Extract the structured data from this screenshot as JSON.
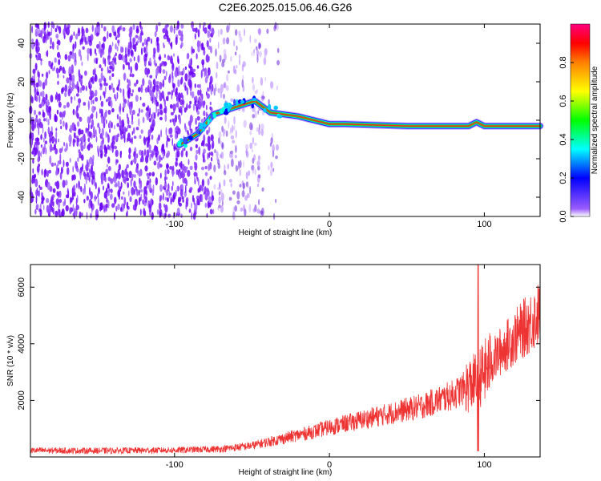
{
  "chart_data": [
    {
      "type": "heatmap",
      "title": "C2E6.2025.015.06.46.G26",
      "xlabel": "Height of straight line (km)",
      "ylabel": "Frequency (Hz)",
      "xlim": [
        -193,
        136
      ],
      "ylim": [
        -50,
        50
      ],
      "x_ticks": [
        -100,
        0,
        100
      ],
      "y_ticks": [
        -40,
        -20,
        0,
        20,
        40
      ],
      "colorbar": {
        "label": "Normalized spectral amplitude",
        "range": [
          0,
          1
        ],
        "ticks": [
          0.0,
          0.2,
          0.4,
          0.6,
          0.8
        ],
        "colormap": [
          "#ffffff",
          "#8000ff",
          "#0000ff",
          "#00ffff",
          "#00ff00",
          "#ffff00",
          "#ff8000",
          "#ff0000",
          "#ff00a0"
        ]
      },
      "signal_track": [
        {
          "x": -97,
          "y": -13
        },
        {
          "x": -85,
          "y": -7
        },
        {
          "x": -75,
          "y": 3
        },
        {
          "x": -60,
          "y": 7
        },
        {
          "x": -48,
          "y": 10
        },
        {
          "x": -38,
          "y": 4
        },
        {
          "x": -20,
          "y": 2
        },
        {
          "x": 0,
          "y": -2
        },
        {
          "x": 10,
          "y": -2
        },
        {
          "x": 50,
          "y": -3
        },
        {
          "x": 90,
          "y": -3
        },
        {
          "x": 95,
          "y": -1
        },
        {
          "x": 100,
          "y": -3
        },
        {
          "x": 136,
          "y": -3
        }
      ]
    },
    {
      "type": "line",
      "xlabel": "Height of straight line (km)",
      "ylabel": "SNR (10 * v/v)",
      "xlim": [
        -193,
        136
      ],
      "ylim": [
        0,
        6800
      ],
      "x_ticks": [
        -100,
        0,
        100
      ],
      "y_ticks": [
        2000,
        4000,
        6000
      ],
      "color": "#ee3333",
      "trend": [
        {
          "x": -193,
          "y": 230
        },
        {
          "x": -150,
          "y": 220
        },
        {
          "x": -100,
          "y": 240
        },
        {
          "x": -70,
          "y": 280
        },
        {
          "x": -50,
          "y": 400
        },
        {
          "x": -30,
          "y": 650
        },
        {
          "x": -10,
          "y": 900
        },
        {
          "x": 0,
          "y": 1050
        },
        {
          "x": 20,
          "y": 1300
        },
        {
          "x": 40,
          "y": 1550
        },
        {
          "x": 60,
          "y": 1800
        },
        {
          "x": 80,
          "y": 2200
        },
        {
          "x": 95,
          "y": 2700
        },
        {
          "x": 100,
          "y": 3000
        },
        {
          "x": 110,
          "y": 3700
        },
        {
          "x": 120,
          "y": 4250
        },
        {
          "x": 136,
          "y": 5100
        }
      ],
      "spike": {
        "x": 96,
        "max": 6800,
        "min": 200
      }
    }
  ]
}
